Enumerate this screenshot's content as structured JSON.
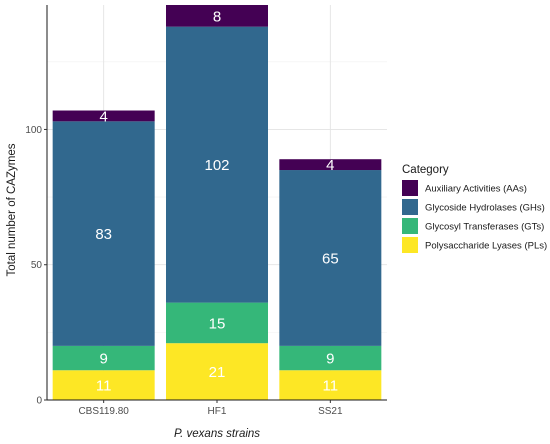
{
  "chart_data": {
    "type": "bar",
    "stacked": true,
    "categories": [
      "CBS119.80",
      "HF1",
      "SS21"
    ],
    "series": [
      {
        "name": "Polysaccharide Lyases (PLs)",
        "color": "#fde725",
        "values": [
          11,
          21,
          11
        ]
      },
      {
        "name": "Glycosyl Transferases (GTs)",
        "color": "#35b779",
        "values": [
          9,
          15,
          9
        ]
      },
      {
        "name": "Glycoside Hydrolases (GHs)",
        "color": "#31688e",
        "values": [
          83,
          102,
          65
        ]
      },
      {
        "name": "Auxiliary Activities (AAs)",
        "color": "#440154",
        "values": [
          4,
          8,
          4
        ]
      }
    ],
    "xlabel": "P. vexans strains",
    "ylabel": "Total number of CAZymes",
    "ylim": [
      0,
      146
    ],
    "yticks": [
      0,
      50,
      100
    ],
    "grid": true,
    "legend": {
      "title": "Category",
      "position": "right",
      "order": [
        "Auxiliary Activities (AAs)",
        "Glycoside Hydrolases (GHs)",
        "Glycosyl Transferases (GTs)",
        "Polysaccharide Lyases (PLs)"
      ]
    }
  }
}
